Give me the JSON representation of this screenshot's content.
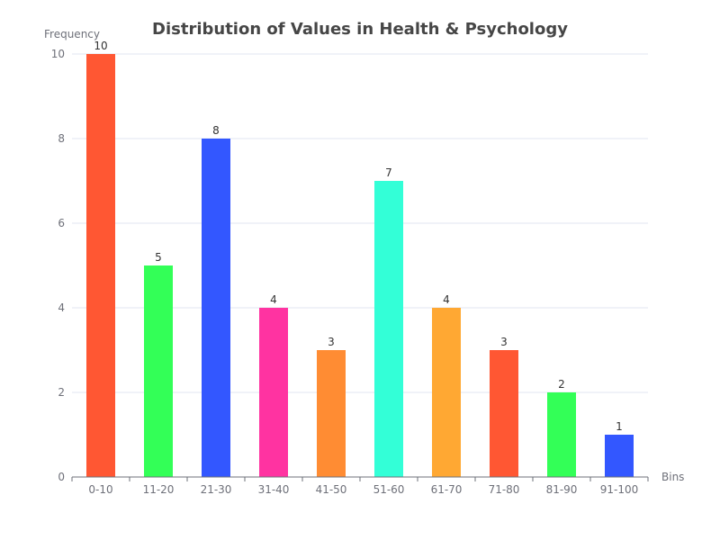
{
  "chart_data": {
    "type": "bar",
    "title": "Distribution of Values in Health & Psychology",
    "xlabel": "Bins",
    "ylabel": "Frequency",
    "categories": [
      "0-10",
      "11-20",
      "21-30",
      "31-40",
      "41-50",
      "51-60",
      "61-70",
      "71-80",
      "81-90",
      "91-100"
    ],
    "values": [
      10,
      5,
      8,
      4,
      3,
      7,
      4,
      3,
      2,
      1
    ],
    "colors": [
      "#ff5733",
      "#33ff57",
      "#3357ff",
      "#ff33a1",
      "#ff8c33",
      "#33ffd7",
      "#ffa833",
      "#ff5733",
      "#33ff57",
      "#3357ff"
    ],
    "ylim": [
      0,
      10
    ],
    "yticks": [
      0,
      2,
      4,
      6,
      8,
      10
    ],
    "grid": true,
    "data_labels": true
  }
}
